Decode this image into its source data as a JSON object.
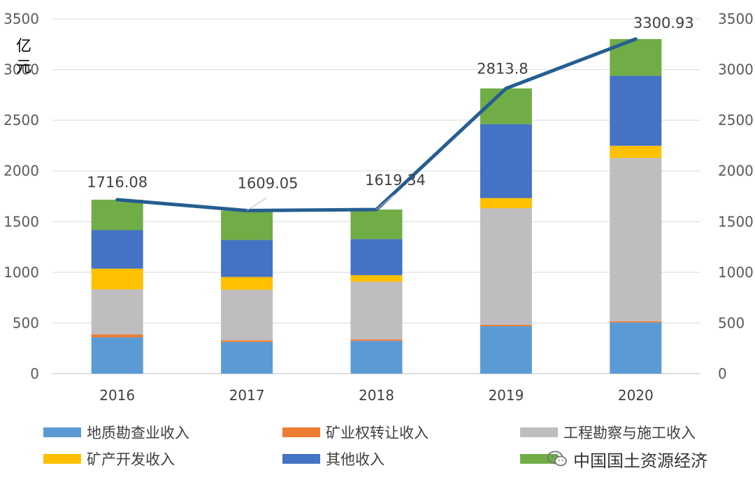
{
  "chart_data": {
    "type": "bar",
    "stacked": true,
    "ylabel": "亿元",
    "ylim": [
      0,
      3500
    ],
    "yticks": [
      0,
      500,
      1000,
      1500,
      2000,
      2500,
      3000,
      3500
    ],
    "categories": [
      "2016",
      "2017",
      "2018",
      "2019",
      "2020"
    ],
    "series": [
      {
        "name": "地质勘查业收入",
        "color": "#5B9BD5",
        "values": [
          358,
          312,
          323,
          468,
          505
        ]
      },
      {
        "name": "矿业权转让收入",
        "color": "#ED7D31",
        "values": [
          28,
          17,
          14,
          14,
          13
        ]
      },
      {
        "name": "工程勘察与施工收入",
        "color": "#BFBDBF",
        "values": [
          445,
          500,
          570,
          1150,
          1610
        ]
      },
      {
        "name": "矿产开发收入",
        "color": "#FFC000",
        "values": [
          205,
          125,
          65,
          100,
          120
        ]
      },
      {
        "name": "其他收入",
        "color": "#4472C4",
        "values": [
          380,
          365,
          355,
          730,
          690
        ]
      },
      {
        "name": "",
        "color": "#70AD47",
        "values": [
          300,
          290,
          292,
          352,
          363
        ]
      }
    ],
    "line": {
      "color": "#255E91",
      "values": [
        1716.08,
        1609.05,
        1619.34,
        2813.8,
        3300.93
      ],
      "labels": [
        "1716.08",
        "1609.05",
        "1619.34",
        "2813.8",
        "3300.93"
      ]
    },
    "grid": true,
    "legend_position": "bottom"
  },
  "watermark": {
    "text": "中国国土资源经济",
    "icon": "wechat-icon"
  }
}
